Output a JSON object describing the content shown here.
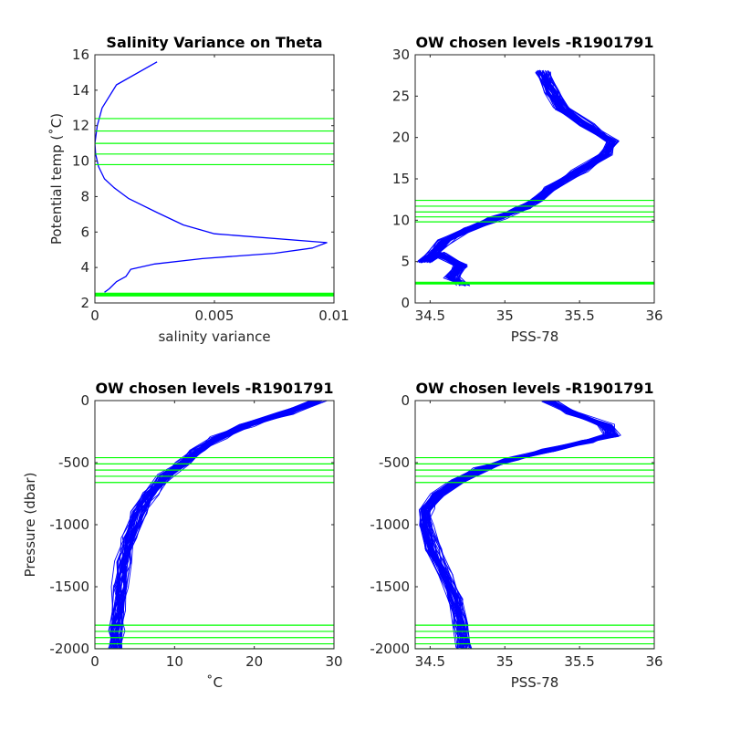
{
  "chart_data": [
    {
      "type": "line",
      "title": "Salinity Variance on Theta",
      "xlabel": "salinity variance",
      "ylabel": "Potential temp (˚C)",
      "xlim": [
        0,
        0.01
      ],
      "ylim": [
        2,
        16
      ],
      "xticks": [
        "0",
        "0.005",
        "0.01"
      ],
      "xtick_values": [
        0,
        0.005,
        0.01
      ],
      "yticks": [
        "2",
        "4",
        "6",
        "8",
        "10",
        "12",
        "14",
        "16"
      ],
      "ytick_values": [
        2,
        4,
        6,
        8,
        10,
        12,
        14,
        16
      ],
      "series": [
        {
          "color": "#0000ff",
          "x": [
            0.0004,
            0.0006,
            0.0009,
            0.0013,
            0.0015,
            0.0025,
            0.0045,
            0.0075,
            0.0091,
            0.0097,
            0.005,
            0.0037,
            0.0026,
            0.0014,
            0.0008,
            0.0004,
            0.00015,
            3e-05,
            0.0,
            0.0001,
            0.0003,
            0.0009,
            0.0026
          ],
          "y": [
            2.6,
            2.8,
            3.2,
            3.5,
            3.9,
            4.2,
            4.5,
            4.8,
            5.1,
            5.4,
            5.9,
            6.4,
            7.1,
            7.9,
            8.5,
            9.0,
            9.7,
            10.4,
            11.0,
            12.0,
            13.0,
            14.3,
            15.6
          ]
        }
      ],
      "hlines": [
        2.4,
        2.45,
        2.5,
        2.55,
        9.8,
        10.4,
        11.0,
        11.7,
        12.4
      ],
      "hline_color": "#00ff00",
      "grid": false
    },
    {
      "type": "line",
      "title": "OW chosen levels -R1901791",
      "xlabel": "PSS-78",
      "ylabel": "",
      "xlim": [
        34.4,
        36
      ],
      "ylim": [
        0,
        30
      ],
      "xticks": [
        "34.5",
        "35",
        "35.5",
        "36"
      ],
      "xtick_values": [
        34.5,
        35,
        35.5,
        36
      ],
      "yticks": [
        "0",
        "5",
        "10",
        "15",
        "20",
        "25",
        "30"
      ],
      "ytick_values": [
        0,
        5,
        10,
        15,
        20,
        25,
        30
      ],
      "series": [
        {
          "name": "",
          "color": "#0000ff",
          "x": [
            34.72,
            34.65,
            34.7,
            34.55,
            34.46,
            34.6,
            34.76,
            34.95,
            35.12,
            35.22,
            35.32,
            35.5,
            35.68,
            35.72,
            35.55,
            35.38,
            35.32,
            35.25
          ],
          "y": [
            2.2,
            3.0,
            4.5,
            6.0,
            5.0,
            7.5,
            9.0,
            10.3,
            11.5,
            12.5,
            14.0,
            16.0,
            18.0,
            19.5,
            21.5,
            23.5,
            25.5,
            28.0
          ]
        }
      ],
      "hlines": [
        2.3,
        2.4,
        2.5,
        9.8,
        10.4,
        11.0,
        11.7,
        12.4
      ],
      "hline_color": "#00ff00",
      "grid": false
    },
    {
      "type": "line",
      "title": "OW chosen levels -R1901791",
      "xlabel": "˚C",
      "ylabel": "Pressure (dbar)",
      "xlim": [
        0,
        30
      ],
      "ylim": [
        -2000,
        0
      ],
      "xticks": [
        "0",
        "10",
        "20",
        "30"
      ],
      "xtick_values": [
        0,
        10,
        20,
        30
      ],
      "yticks": [
        "-2000",
        "-1500",
        "-1000",
        "-500",
        "0"
      ],
      "ytick_values": [
        -2000,
        -1500,
        -1000,
        -500,
        0
      ],
      "series": [
        {
          "name": "",
          "color": "#0000ff",
          "x": [
            28.0,
            24.0,
            19.0,
            15.5,
            13.0,
            11.0,
            9.0,
            7.0,
            5.5,
            4.3,
            3.6,
            3.2,
            2.9,
            2.7,
            2.6
          ],
          "y": [
            0,
            -100,
            -200,
            -300,
            -400,
            -500,
            -600,
            -750,
            -900,
            -1100,
            -1300,
            -1500,
            -1700,
            -1850,
            -2000
          ]
        }
      ],
      "hlines": [
        -460,
        -510,
        -560,
        -610,
        -660,
        -1810,
        -1860,
        -1910,
        -1960,
        -2000
      ],
      "hline_color": "#00ff00",
      "grid": false
    },
    {
      "type": "line",
      "title": "OW chosen levels -R1901791",
      "xlabel": "PSS-78",
      "ylabel": "",
      "xlim": [
        34.4,
        36
      ],
      "ylim": [
        -2000,
        0
      ],
      "xticks": [
        "34.5",
        "35",
        "35.5",
        "36"
      ],
      "xtick_values": [
        34.5,
        35,
        35.5,
        36
      ],
      "yticks": [
        "-2000",
        "-1500",
        "-1000",
        "-500",
        "0"
      ],
      "ytick_values": [
        -2000,
        -1500,
        -1000,
        -500,
        0
      ],
      "series": [
        {
          "name": "",
          "color": "#0000ff",
          "x": [
            35.3,
            35.45,
            35.68,
            35.72,
            35.55,
            35.3,
            35.05,
            34.85,
            34.68,
            34.55,
            34.48,
            34.47,
            34.52,
            34.6,
            34.67,
            34.71,
            34.73
          ],
          "y": [
            0,
            -100,
            -200,
            -280,
            -330,
            -400,
            -470,
            -550,
            -650,
            -760,
            -880,
            -1000,
            -1200,
            -1400,
            -1600,
            -1800,
            -2000
          ]
        }
      ],
      "hlines": [
        -460,
        -510,
        -560,
        -610,
        -660,
        -1810,
        -1860,
        -1910,
        -1960,
        -2000
      ],
      "hline_color": "#00ff00",
      "grid": false
    }
  ]
}
